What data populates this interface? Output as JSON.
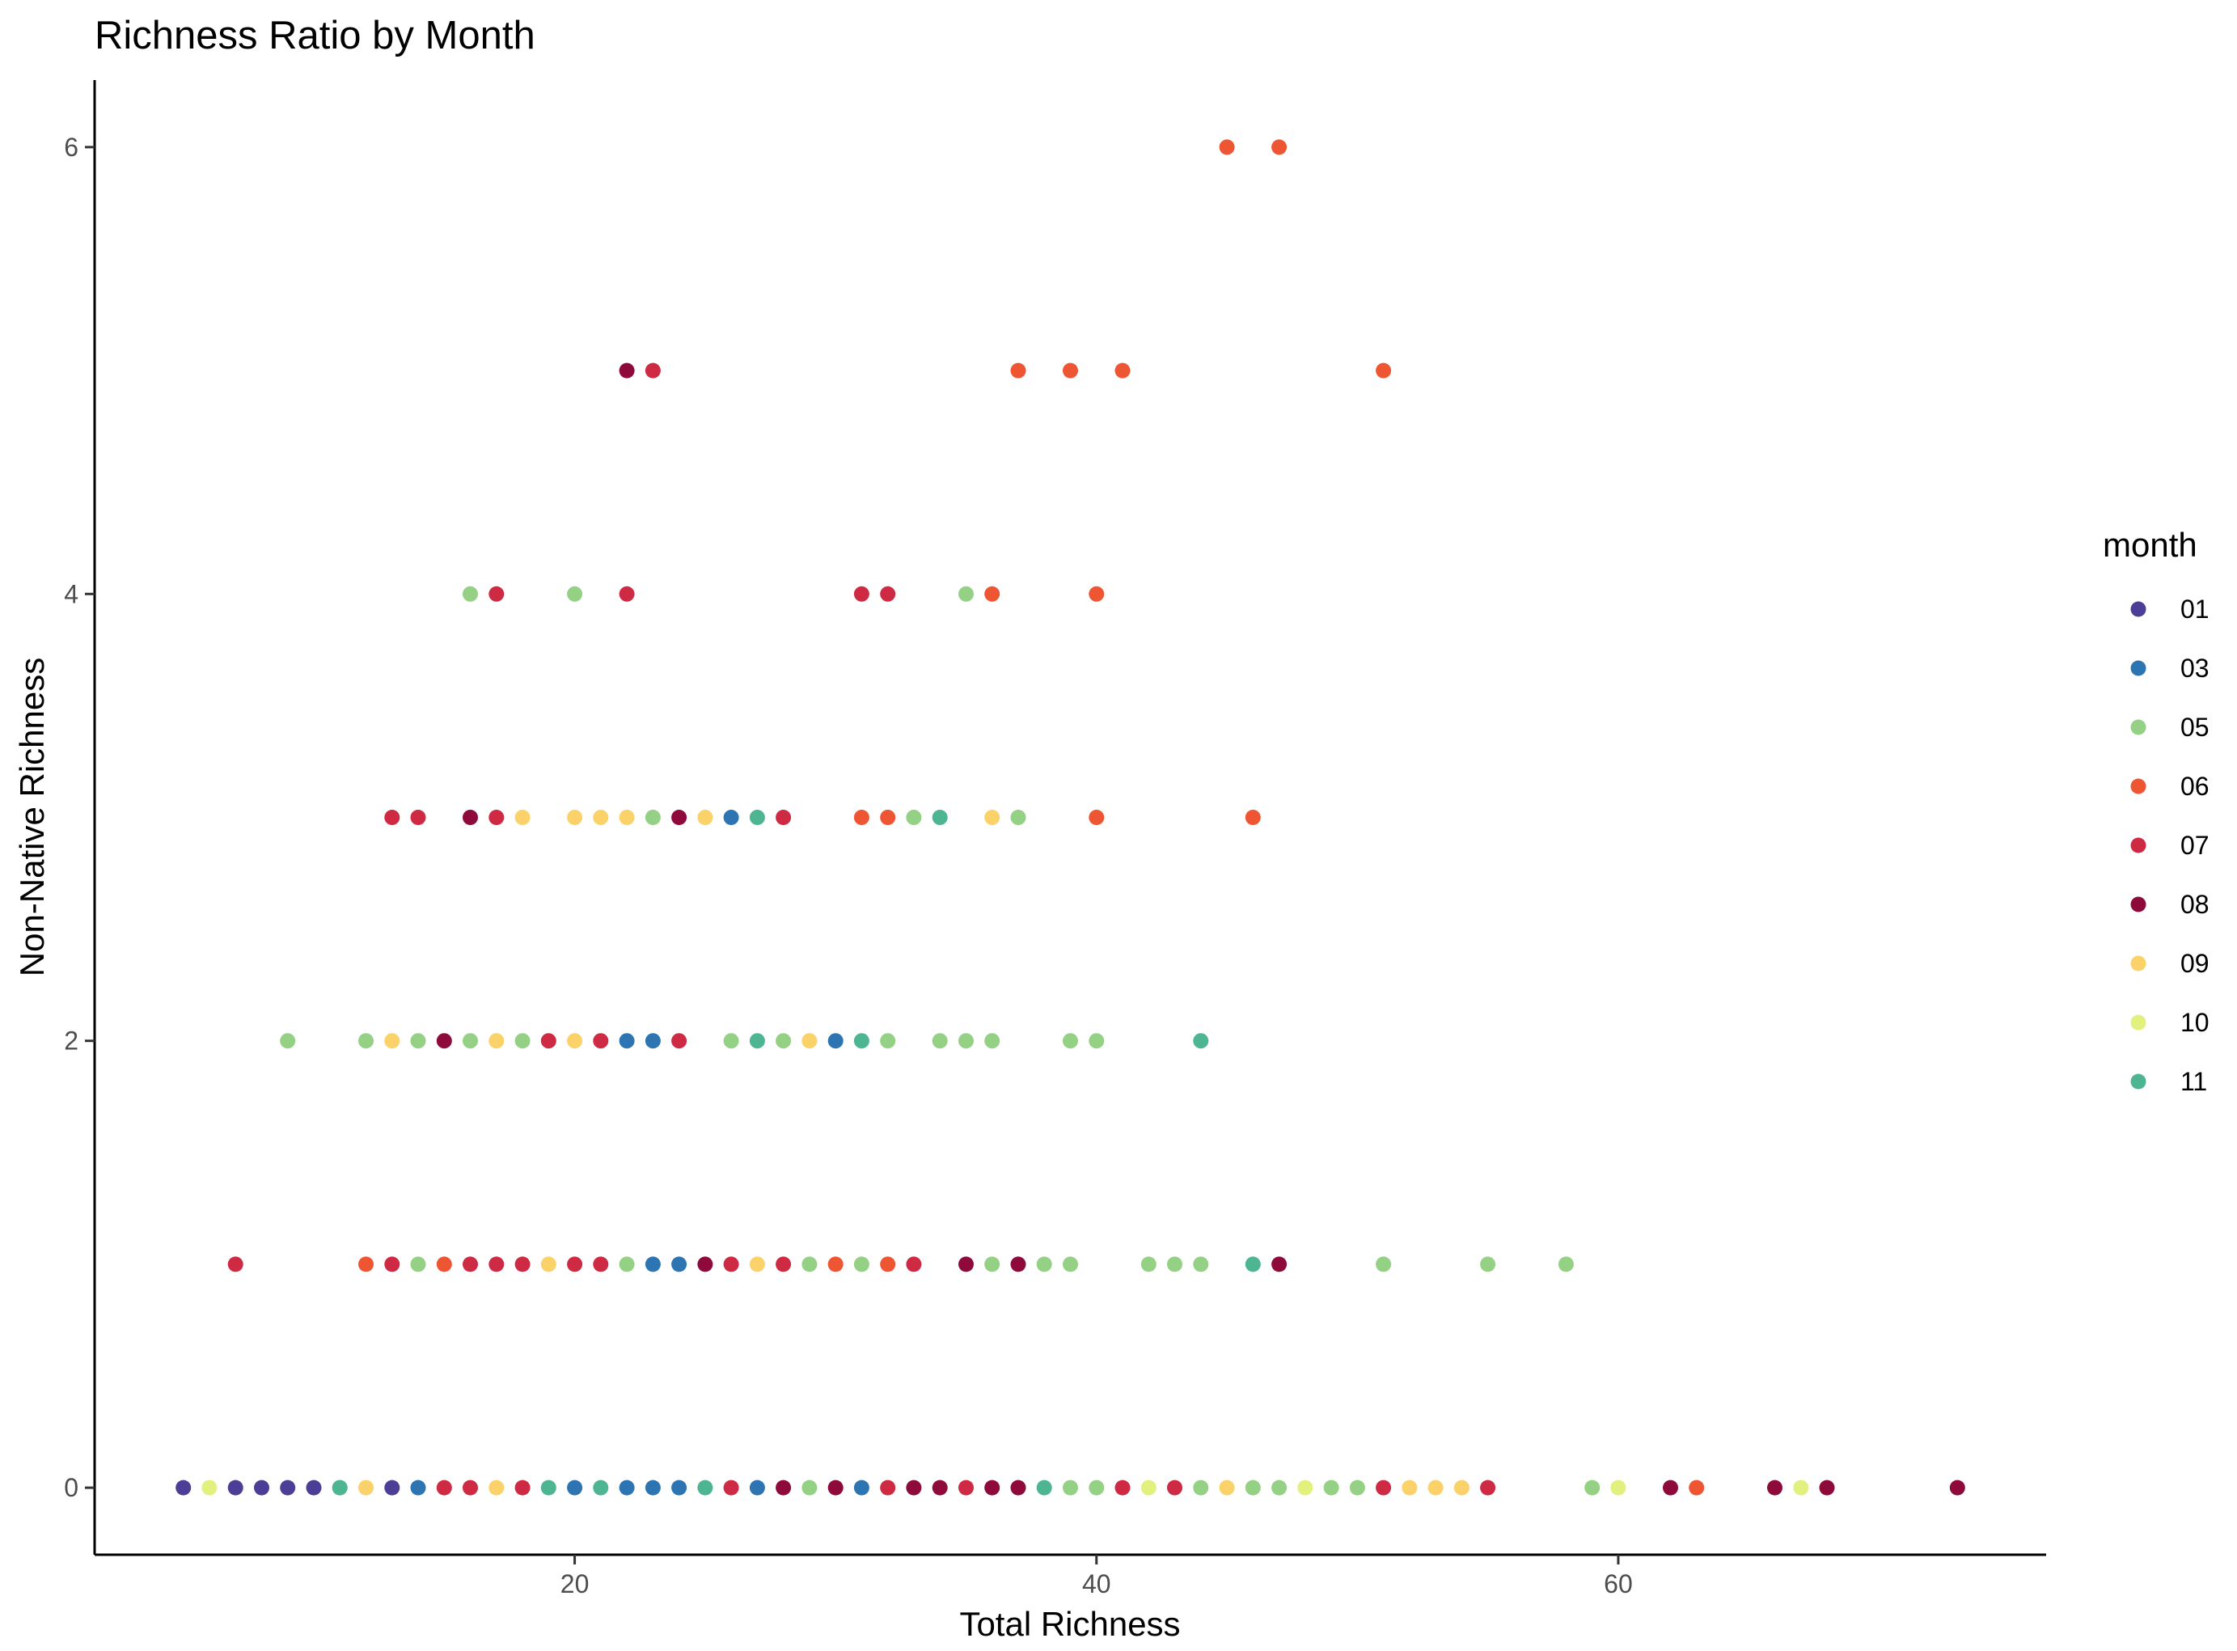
{
  "chart_data": {
    "type": "scatter",
    "title": "Richness Ratio by Month",
    "xlabel": "Total Richness",
    "ylabel": "Non-Native Richness",
    "xlim": [
      1.6,
      76.4
    ],
    "ylim": [
      -0.3,
      6.3
    ],
    "x_ticks": [
      20,
      40,
      60
    ],
    "y_ticks": [
      0,
      2,
      4,
      6
    ],
    "x_tick_labels": [
      "20",
      "40",
      "60"
    ],
    "y_tick_labels": [
      "0",
      "2",
      "4",
      "6"
    ],
    "grid": false,
    "legend": {
      "title": "month",
      "position": "right",
      "entries": [
        "01",
        "03",
        "05",
        "06",
        "07",
        "08",
        "09",
        "10",
        "11"
      ]
    },
    "series": [
      {
        "name": "01",
        "color": "#4B3E96",
        "points": [
          [
            5,
            0
          ],
          [
            7,
            0
          ],
          [
            8,
            0
          ],
          [
            9,
            0
          ],
          [
            10,
            0
          ],
          [
            13,
            0
          ]
        ]
      },
      {
        "name": "03",
        "color": "#2C75B2",
        "points": [
          [
            14,
            0
          ],
          [
            20,
            0
          ],
          [
            22,
            0
          ],
          [
            23,
            0
          ],
          [
            24,
            0
          ],
          [
            27,
            0
          ],
          [
            31,
            0
          ],
          [
            22,
            2
          ],
          [
            23,
            2
          ],
          [
            30,
            2
          ],
          [
            23,
            1
          ],
          [
            24,
            1
          ],
          [
            26,
            3
          ]
        ]
      },
      {
        "name": "05",
        "color": "#94D184",
        "points": [
          [
            9,
            2
          ],
          [
            12,
            2
          ],
          [
            14,
            2
          ],
          [
            16,
            2
          ],
          [
            18,
            2
          ],
          [
            22,
            1
          ],
          [
            14,
            1
          ],
          [
            26,
            2
          ],
          [
            28,
            2
          ],
          [
            29,
            1
          ],
          [
            31,
            1
          ],
          [
            32,
            2
          ],
          [
            34,
            2
          ],
          [
            35,
            2
          ],
          [
            36,
            2
          ],
          [
            39,
            2
          ],
          [
            40,
            2
          ],
          [
            36,
            1
          ],
          [
            38,
            1
          ],
          [
            39,
            1
          ],
          [
            42,
            1
          ],
          [
            43,
            1
          ],
          [
            44,
            1
          ],
          [
            51,
            1
          ],
          [
            55,
            1
          ],
          [
            58,
            1
          ],
          [
            16,
            4
          ],
          [
            20,
            4
          ],
          [
            35,
            4
          ],
          [
            23,
            3
          ],
          [
            33,
            3
          ],
          [
            37,
            3
          ],
          [
            29,
            0
          ],
          [
            39,
            0
          ],
          [
            40,
            0
          ],
          [
            44,
            0
          ],
          [
            46,
            0
          ],
          [
            47,
            0
          ],
          [
            49,
            0
          ],
          [
            50,
            0
          ],
          [
            59,
            0
          ],
          [
            11,
            0
          ]
        ]
      },
      {
        "name": "06",
        "color": "#EE5533",
        "points": [
          [
            45,
            6
          ],
          [
            47,
            6
          ],
          [
            37,
            5
          ],
          [
            39,
            5
          ],
          [
            41,
            5
          ],
          [
            51,
            5
          ],
          [
            36,
            4
          ],
          [
            40,
            4
          ],
          [
            31,
            3
          ],
          [
            32,
            3
          ],
          [
            40,
            3
          ],
          [
            46,
            3
          ],
          [
            12,
            1
          ],
          [
            15,
            1
          ],
          [
            30,
            1
          ],
          [
            32,
            1
          ],
          [
            63,
            0
          ]
        ]
      },
      {
        "name": "07",
        "color": "#CE2A44",
        "points": [
          [
            7,
            1
          ],
          [
            13,
            1
          ],
          [
            16,
            1
          ],
          [
            17,
            1
          ],
          [
            18,
            1
          ],
          [
            20,
            1
          ],
          [
            21,
            1
          ],
          [
            26,
            1
          ],
          [
            28,
            1
          ],
          [
            33,
            1
          ],
          [
            19,
            2
          ],
          [
            21,
            2
          ],
          [
            24,
            2
          ],
          [
            13,
            3
          ],
          [
            14,
            3
          ],
          [
            17,
            3
          ],
          [
            28,
            3
          ],
          [
            17,
            4
          ],
          [
            22,
            4
          ],
          [
            31,
            4
          ],
          [
            32,
            4
          ],
          [
            23,
            5
          ],
          [
            15,
            0
          ],
          [
            16,
            0
          ],
          [
            18,
            0
          ],
          [
            26,
            0
          ],
          [
            32,
            0
          ],
          [
            35,
            0
          ],
          [
            41,
            0
          ],
          [
            43,
            0
          ],
          [
            51,
            0
          ],
          [
            55,
            0
          ]
        ]
      },
      {
        "name": "08",
        "color": "#8E0A3B",
        "points": [
          [
            22,
            5
          ],
          [
            16,
            3
          ],
          [
            24,
            3
          ],
          [
            15,
            2
          ],
          [
            25,
            1
          ],
          [
            35,
            1
          ],
          [
            37,
            1
          ],
          [
            47,
            1
          ],
          [
            28,
            0
          ],
          [
            30,
            0
          ],
          [
            33,
            0
          ],
          [
            34,
            0
          ],
          [
            36,
            0
          ],
          [
            37,
            0
          ],
          [
            62,
            0
          ],
          [
            66,
            0
          ],
          [
            68,
            0
          ],
          [
            73,
            0
          ]
        ]
      },
      {
        "name": "09",
        "color": "#FBD269",
        "points": [
          [
            18,
            3
          ],
          [
            20,
            3
          ],
          [
            21,
            3
          ],
          [
            22,
            3
          ],
          [
            25,
            3
          ],
          [
            36,
            3
          ],
          [
            13,
            2
          ],
          [
            17,
            2
          ],
          [
            20,
            2
          ],
          [
            29,
            2
          ],
          [
            19,
            1
          ],
          [
            27,
            1
          ],
          [
            12,
            0
          ],
          [
            17,
            0
          ],
          [
            45,
            0
          ],
          [
            52,
            0
          ],
          [
            53,
            0
          ],
          [
            54,
            0
          ]
        ]
      },
      {
        "name": "10",
        "color": "#E2F07E",
        "points": [
          [
            6,
            0
          ],
          [
            42,
            0
          ],
          [
            48,
            0
          ],
          [
            60,
            0
          ],
          [
            67,
            0
          ]
        ]
      },
      {
        "name": "11",
        "color": "#4DB592",
        "points": [
          [
            27,
            3
          ],
          [
            34,
            3
          ],
          [
            31,
            2
          ],
          [
            27,
            2
          ],
          [
            44,
            2
          ],
          [
            46,
            1
          ],
          [
            11,
            0
          ],
          [
            19,
            0
          ],
          [
            21,
            0
          ],
          [
            25,
            0
          ],
          [
            38,
            0
          ]
        ]
      }
    ]
  }
}
